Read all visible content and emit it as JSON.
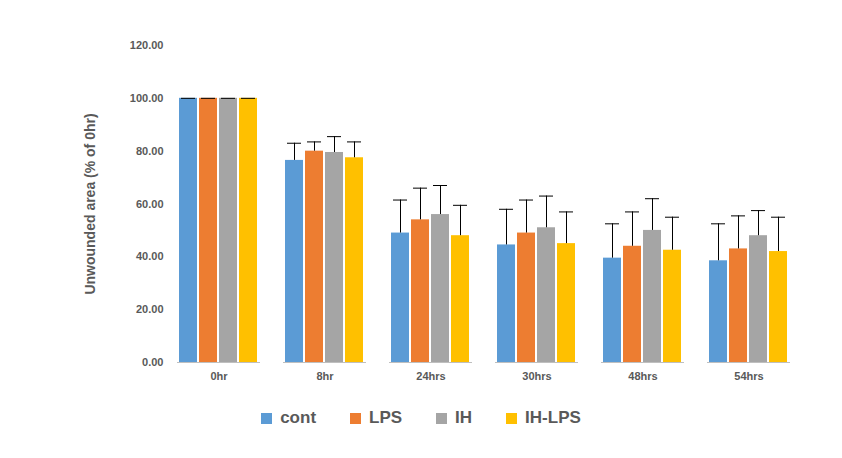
{
  "chart_data": {
    "type": "bar",
    "y_label": "Unwounded area (% of 0hr)",
    "categories": [
      "0hr",
      "8hr",
      "24hrs",
      "30hrs",
      "48hrs",
      "54hrs"
    ],
    "series": [
      {
        "name": "cont",
        "color": "#5B9BD5",
        "values": [
          100,
          76.5,
          49,
          44.5,
          39.5,
          38.5
        ],
        "errors": [
          0,
          6.5,
          12.5,
          13.5,
          13,
          14
        ]
      },
      {
        "name": "LPS",
        "color": "#ED7D31",
        "values": [
          100,
          80,
          54,
          49,
          44,
          43
        ],
        "errors": [
          0,
          3.5,
          12,
          12.5,
          13,
          12.5
        ]
      },
      {
        "name": "IH",
        "color": "#A5A5A5",
        "values": [
          100,
          79.5,
          56,
          51,
          50,
          48
        ],
        "errors": [
          0,
          6,
          11,
          12,
          12,
          9.5
        ]
      },
      {
        "name": "IH-LPS",
        "color": "#FFC000",
        "values": [
          100,
          77.5,
          48,
          45,
          42.5,
          42
        ],
        "errors": [
          0,
          6,
          11.5,
          12,
          12.5,
          13
        ]
      }
    ],
    "ylim": [
      0,
      120
    ],
    "yticks": [
      {
        "value": 0,
        "label": "0.00"
      },
      {
        "value": 20,
        "label": "20.00"
      },
      {
        "value": 40,
        "label": "40.00"
      },
      {
        "value": 60,
        "label": "60.00"
      },
      {
        "value": 80,
        "label": "80.00"
      },
      {
        "value": 100,
        "label": "100.00"
      },
      {
        "value": 120,
        "label": "120.00"
      }
    ],
    "grid": false,
    "legend": "bottom"
  }
}
